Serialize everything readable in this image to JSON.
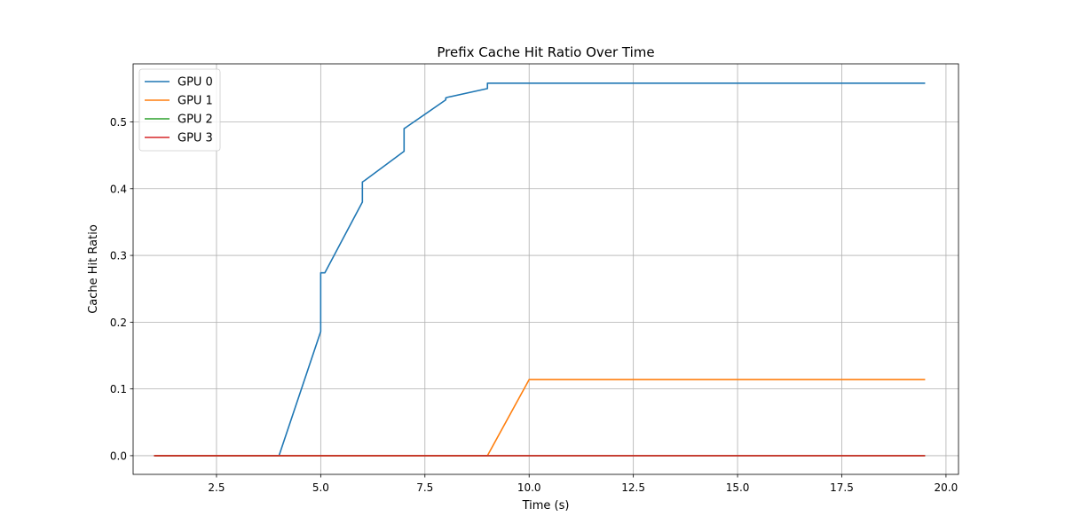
{
  "chart_data": {
    "type": "line",
    "title": "Prefix Cache Hit Ratio Over Time",
    "xlabel": "Time (s)",
    "ylabel": "Cache Hit Ratio",
    "xlim": [
      0.5,
      20.3
    ],
    "ylim": [
      -0.028,
      0.587
    ],
    "xticks": [
      2.5,
      5.0,
      7.5,
      10.0,
      12.5,
      15.0,
      17.5,
      20.0
    ],
    "xtick_labels": [
      "2.5",
      "5.0",
      "7.5",
      "10.0",
      "12.5",
      "15.0",
      "17.5",
      "20.0"
    ],
    "yticks": [
      0.0,
      0.1,
      0.2,
      0.3,
      0.4,
      0.5
    ],
    "ytick_labels": [
      "0.0",
      "0.1",
      "0.2",
      "0.3",
      "0.4",
      "0.5"
    ],
    "grid": true,
    "legend_position": "top-left",
    "series": [
      {
        "name": "GPU 0",
        "color": "#1f77b4",
        "x": [
          1.0,
          4.0,
          5.0,
          5.0,
          5.1,
          6.0,
          6.0,
          6.05,
          7.0,
          7.0,
          7.05,
          8.0,
          8.0,
          8.05,
          9.0,
          9.0,
          19.5
        ],
        "y": [
          0.0,
          0.0,
          0.186,
          0.274,
          0.274,
          0.38,
          0.41,
          0.412,
          0.456,
          0.49,
          0.492,
          0.533,
          0.536,
          0.537,
          0.55,
          0.558,
          0.558
        ]
      },
      {
        "name": "GPU 1",
        "color": "#ff7f0e",
        "x": [
          1.0,
          9.0,
          10.0,
          19.5
        ],
        "y": [
          0.0,
          0.0,
          0.114,
          0.114
        ]
      },
      {
        "name": "GPU 2",
        "color": "#2ca02c",
        "x": [
          1.0,
          19.5
        ],
        "y": [
          0.0,
          0.0
        ]
      },
      {
        "name": "GPU 3",
        "color": "#d62728",
        "x": [
          1.0,
          19.5
        ],
        "y": [
          0.0,
          0.0
        ]
      }
    ]
  }
}
